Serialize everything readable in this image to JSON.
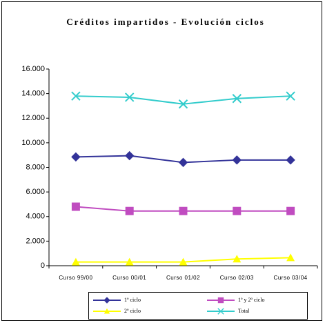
{
  "chart_data": {
    "type": "line",
    "title": "Créditos impartidos - Evolución ciclos",
    "categories": [
      "Curso 99/00",
      "Curso 00/01",
      "Curso 01/02",
      "Curso 02/03",
      "Curso 03/04"
    ],
    "series": [
      {
        "name": "1º ciclo",
        "color": "#333399",
        "marker": "diamond",
        "values": [
          8850,
          8950,
          8400,
          8600,
          8600
        ]
      },
      {
        "name": "1º y 2º ciclo",
        "color": "#c04cc0",
        "marker": "square",
        "values": [
          4800,
          4450,
          4450,
          4450,
          4450
        ]
      },
      {
        "name": "2º ciclo",
        "color": "#ffff00",
        "marker": "triangle",
        "values": [
          300,
          300,
          300,
          550,
          650
        ]
      },
      {
        "name": "Total",
        "color": "#33cccc",
        "marker": "x",
        "values": [
          13800,
          13700,
          13150,
          13600,
          13800
        ]
      }
    ],
    "ylim": [
      0,
      16000
    ],
    "yticks": [
      0,
      {
        "value": 2000,
        "label": "2.000"
      },
      {
        "value": 4000,
        "label": "4.000"
      },
      {
        "value": 6000,
        "label": "6.000"
      },
      {
        "value": 8000,
        "label": "8.000"
      },
      {
        "value": 10000,
        "label": "10.000"
      },
      {
        "value": 12000,
        "label": "12.000"
      },
      {
        "value": 14000,
        "label": "14.000"
      },
      {
        "value": 16000,
        "label": "16.000"
      }
    ],
    "legend": "bottom"
  }
}
